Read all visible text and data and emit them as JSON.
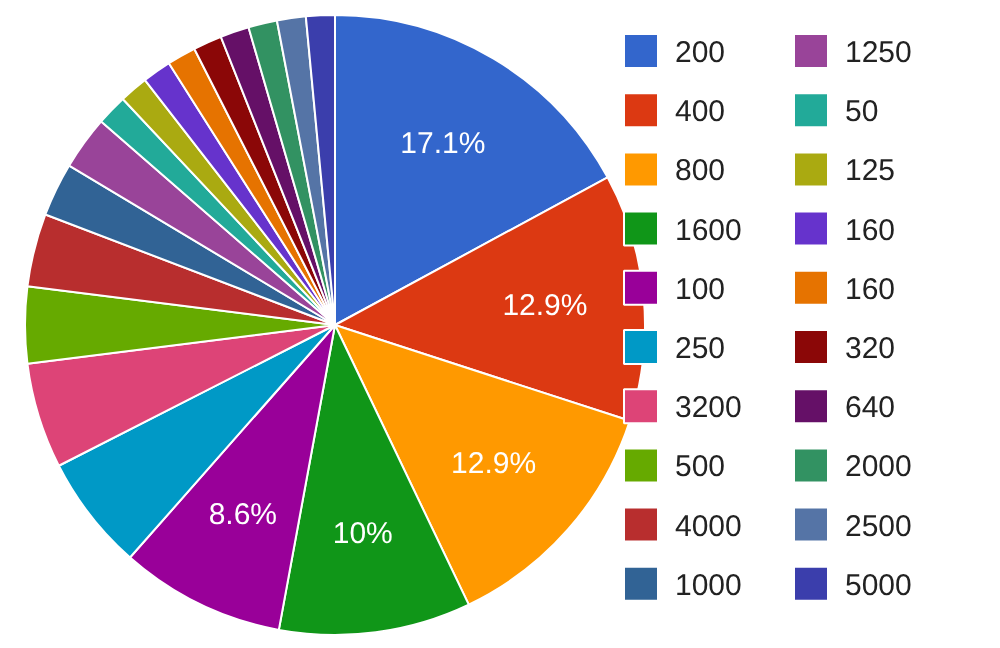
{
  "chart_data": {
    "type": "pie",
    "categories": [
      "200",
      "400",
      "800",
      "1600",
      "100",
      "250",
      "3200",
      "500",
      "4000",
      "1000",
      "1250",
      "50",
      "125",
      "160",
      "160",
      "320",
      "640",
      "2000",
      "2500",
      "5000"
    ],
    "values": [
      17.1,
      12.9,
      12.9,
      10,
      8.6,
      6,
      5.5,
      4,
      3.8,
      2.8,
      2.8,
      1.6,
      1.5,
      1.5,
      1.5,
      1.5,
      1.5,
      1.5,
      1.5,
      1.5
    ],
    "value_labels": [
      "17.1%",
      "12.9%",
      "12.9%",
      "10%",
      "8.6%",
      null,
      null,
      null,
      null,
      null,
      null,
      null,
      null,
      null,
      null,
      null,
      null,
      null,
      null,
      null
    ],
    "colors": [
      "#3366cc",
      "#dc3912",
      "#ff9900",
      "#109618",
      "#990099",
      "#0099c6",
      "#dd4477",
      "#66aa00",
      "#b82e2e",
      "#316395",
      "#994499",
      "#22aa99",
      "#aaaa11",
      "#6633cc",
      "#e67300",
      "#8b0707",
      "#651067",
      "#329262",
      "#5574a6",
      "#3b3eac"
    ],
    "legend": "right"
  }
}
